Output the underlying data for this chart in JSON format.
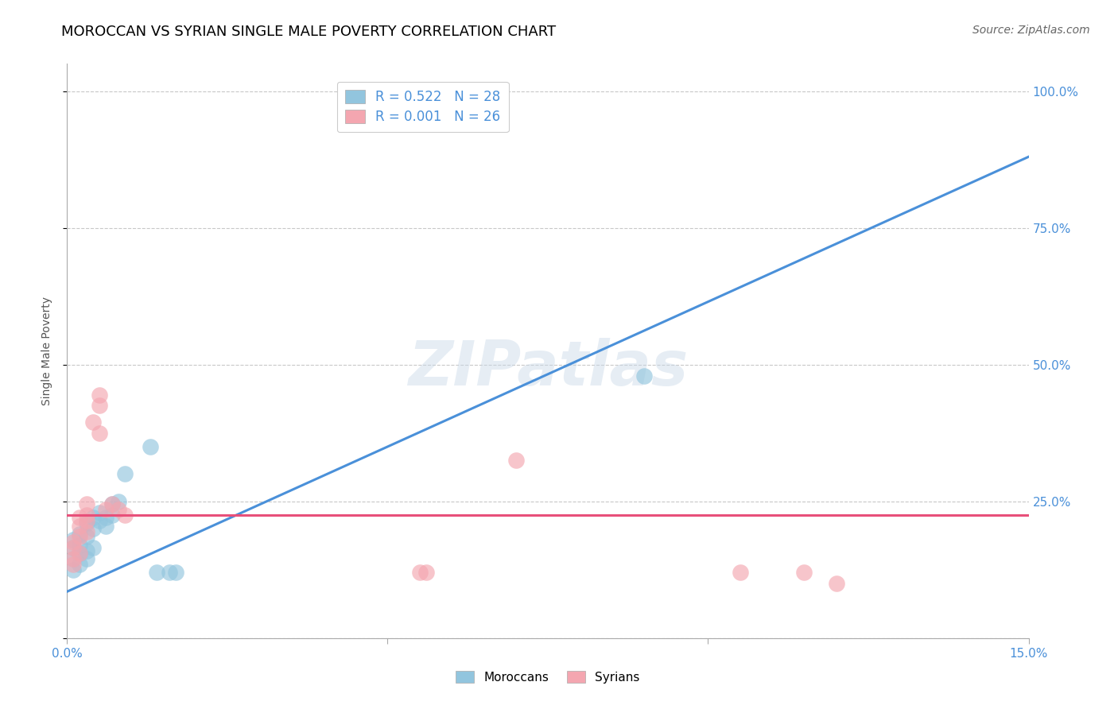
{
  "title": "MOROCCAN VS SYRIAN SINGLE MALE POVERTY CORRELATION CHART",
  "source": "Source: ZipAtlas.com",
  "ylabel": "Single Male Poverty",
  "watermark": "ZIPatlas",
  "xlim": [
    0.0,
    0.15
  ],
  "ylim": [
    0.0,
    1.05
  ],
  "moroccan_R": 0.522,
  "moroccan_N": 28,
  "syrian_R": 0.001,
  "syrian_N": 26,
  "moroccan_color": "#92c5de",
  "syrian_color": "#f4a6b0",
  "moroccan_line_color": "#4a90d9",
  "syrian_line_color": "#e8507a",
  "legend_moroccan_label": "Moroccans",
  "legend_syrian_label": "Syrians",
  "moroccan_points": [
    [
      0.001,
      0.18
    ],
    [
      0.001,
      0.145
    ],
    [
      0.001,
      0.165
    ],
    [
      0.001,
      0.125
    ],
    [
      0.002,
      0.17
    ],
    [
      0.002,
      0.155
    ],
    [
      0.002,
      0.135
    ],
    [
      0.002,
      0.19
    ],
    [
      0.003,
      0.16
    ],
    [
      0.003,
      0.145
    ],
    [
      0.003,
      0.21
    ],
    [
      0.003,
      0.185
    ],
    [
      0.004,
      0.2
    ],
    [
      0.004,
      0.22
    ],
    [
      0.004,
      0.165
    ],
    [
      0.005,
      0.23
    ],
    [
      0.005,
      0.215
    ],
    [
      0.006,
      0.22
    ],
    [
      0.006,
      0.205
    ],
    [
      0.007,
      0.245
    ],
    [
      0.007,
      0.225
    ],
    [
      0.008,
      0.25
    ],
    [
      0.009,
      0.3
    ],
    [
      0.013,
      0.35
    ],
    [
      0.014,
      0.12
    ],
    [
      0.016,
      0.12
    ],
    [
      0.017,
      0.12
    ],
    [
      0.09,
      0.48
    ]
  ],
  "syrian_points": [
    [
      0.001,
      0.175
    ],
    [
      0.001,
      0.145
    ],
    [
      0.001,
      0.165
    ],
    [
      0.001,
      0.135
    ],
    [
      0.002,
      0.205
    ],
    [
      0.002,
      0.185
    ],
    [
      0.002,
      0.22
    ],
    [
      0.002,
      0.155
    ],
    [
      0.003,
      0.225
    ],
    [
      0.003,
      0.245
    ],
    [
      0.003,
      0.215
    ],
    [
      0.003,
      0.195
    ],
    [
      0.004,
      0.395
    ],
    [
      0.005,
      0.445
    ],
    [
      0.005,
      0.425
    ],
    [
      0.005,
      0.375
    ],
    [
      0.006,
      0.235
    ],
    [
      0.007,
      0.245
    ],
    [
      0.008,
      0.235
    ],
    [
      0.009,
      0.225
    ],
    [
      0.055,
      0.12
    ],
    [
      0.056,
      0.12
    ],
    [
      0.07,
      0.325
    ],
    [
      0.105,
      0.12
    ],
    [
      0.115,
      0.12
    ],
    [
      0.12,
      0.1
    ]
  ],
  "moroccan_line": {
    "x0": 0.0,
    "y0": 0.085,
    "x1": 0.15,
    "y1": 0.88
  },
  "syrian_line": {
    "x0": 0.0,
    "y0": 0.225,
    "x1": 0.15,
    "y1": 0.225
  },
  "grid_yticks": [
    0.0,
    0.25,
    0.5,
    0.75,
    1.0
  ],
  "ytick_vals_right": [
    1.0,
    0.75,
    0.5,
    0.25,
    0.0
  ],
  "ytick_labels_right": [
    "100.0%",
    "75.0%",
    "50.0%",
    "25.0%",
    ""
  ],
  "title_fontsize": 13,
  "axis_label_fontsize": 10,
  "tick_fontsize": 11,
  "source_fontsize": 10
}
